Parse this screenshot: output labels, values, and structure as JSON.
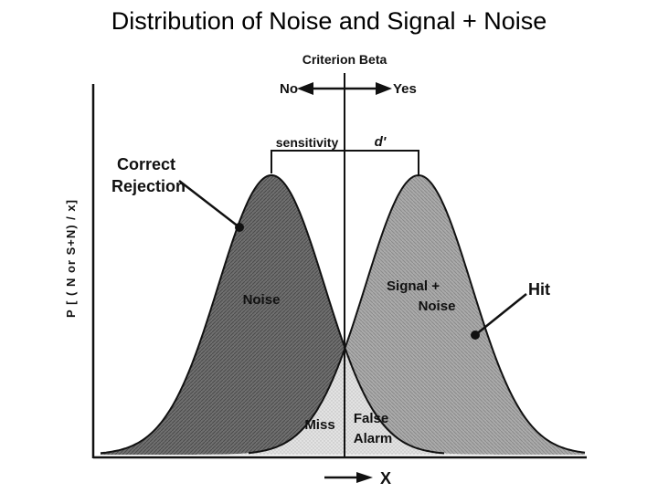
{
  "title": "Distribution of Noise and Signal + Noise",
  "labels": {
    "criterion": "Criterion Beta",
    "no": "No",
    "yes": "Yes",
    "sensitivity": "sensitivity",
    "d_prime": "d'",
    "correct_rejection_line1": "Correct",
    "correct_rejection_line2": "Rejection",
    "noise": "Noise",
    "signal_line1": "Signal +",
    "signal_line2": "Noise",
    "hit": "Hit",
    "miss": "Miss",
    "false_alarm_line1": "False",
    "false_alarm_line2": "Alarm",
    "x_axis": "X",
    "y_axis": "P [ ( N or S+N) / x]"
  },
  "colors": {
    "noise_fill": "#6a6a6a",
    "signal_fill": "#a8a8a8",
    "overlap_fill": "#dcdcdc",
    "stroke": "#111111"
  }
}
